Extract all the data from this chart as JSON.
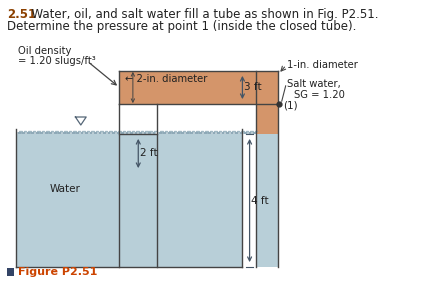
{
  "title_bold": "2.51",
  "title_rest": "  Water, oil, and salt water fill a tube as shown in Fig. P2.51.",
  "title_line2": "Determine the pressure at point 1 (inside the closed tube).",
  "figure_label": "Figure P2.51",
  "oil_density_line1": "Oil density",
  "oil_density_line2": "= 1.20 slugs/ft³",
  "diameter_2in_label": "← 2-in. diameter",
  "diameter_1in_label": "1-in. diameter",
  "salt_water_label1": "Salt water,",
  "salt_water_label2": "SG = 1.20",
  "water_label": "Water",
  "dim_3ft": "3 ft",
  "dim_2ft": "2 ft",
  "dim_4ft": "4 ft",
  "point_label": "(1)",
  "oil_color": "#D4956A",
  "water_color": "#B8CFD8",
  "water_hatch_color": "#7A9AAA",
  "white_color": "#FFFFFF",
  "bg_color": "#FFFFFF",
  "lc": "#444444",
  "arrow_color": "#5577AA",
  "text_color": "#222222",
  "title_bold_color": "#8B4000",
  "fig_label_color": "#CC4400",
  "fig_sq_color": "#334466"
}
